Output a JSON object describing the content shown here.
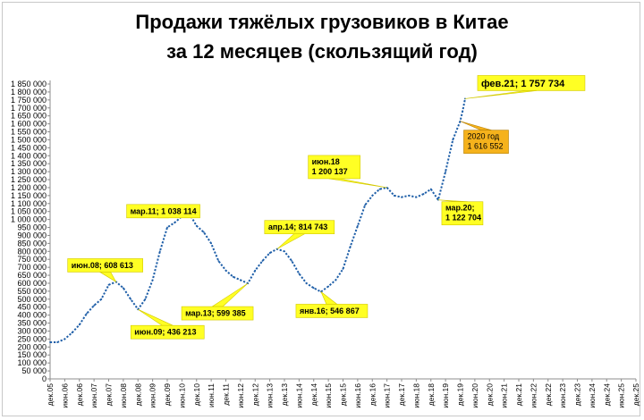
{
  "chart_data": {
    "type": "line",
    "title_lines": [
      "Продажи тяжёлых грузовиков в Китае",
      "за 12 месяцев (скользящий год)"
    ],
    "ylim": [
      0,
      1850000
    ],
    "y_tick_step": 50000,
    "y_tick_labels": [
      "0",
      "50 000",
      "100 000",
      "150 000",
      "200 000",
      "250 000",
      "300 000",
      "350 000",
      "400 000",
      "450 000",
      "500 000",
      "550 000",
      "600 000",
      "650 000",
      "700 000",
      "750 000",
      "800 000",
      "850 000",
      "900 000",
      "950 000",
      "1 000 000",
      "1 050 000",
      "1 100 000",
      "1 150 000",
      "1 200 000",
      "1 250 000",
      "1 300 000",
      "1 350 000",
      "1 400 000",
      "1 450 000",
      "1 500 000",
      "1 550 000",
      "1 600 000",
      "1 650 000",
      "1 700 000",
      "1 750 000",
      "1 800 000",
      "1 850 000"
    ],
    "x_tick_labels": [
      "дек.05",
      "июн.06",
      "дек.06",
      "июн.07",
      "дек.07",
      "июн.08",
      "дек.08",
      "июн.09",
      "дек.09",
      "июн.10",
      "дек.10",
      "июн.11",
      "дек.11",
      "июн.12",
      "дек.12",
      "июн.13",
      "дек.13",
      "июн.14",
      "дек.14",
      "июн.15",
      "дек.15",
      "июн.16",
      "дек.16",
      "июн.17",
      "дек.17",
      "июн.18",
      "дек.18",
      "июн.19",
      "дек.19",
      "июн.20",
      "дек.20",
      "июн.21",
      "дек.21",
      "июн.22",
      "дек.22",
      "июн.23",
      "дек.23",
      "июн.24",
      "дек.24",
      "июн.25",
      "дек.25"
    ],
    "x_range_months": [
      0,
      240
    ],
    "grid": false,
    "legend": "none",
    "series_color": "#1f5fa8",
    "points": [
      [
        0,
        230000
      ],
      [
        3,
        230000
      ],
      [
        6,
        250000
      ],
      [
        9,
        290000
      ],
      [
        12,
        340000
      ],
      [
        15,
        410000
      ],
      [
        18,
        460000
      ],
      [
        21,
        500000
      ],
      [
        24,
        590000
      ],
      [
        27,
        608613
      ],
      [
        30,
        570000
      ],
      [
        33,
        500000
      ],
      [
        36,
        436213
      ],
      [
        39,
        500000
      ],
      [
        42,
        620000
      ],
      [
        45,
        800000
      ],
      [
        48,
        950000
      ],
      [
        51,
        980000
      ],
      [
        54,
        1020000
      ],
      [
        57,
        1038114
      ],
      [
        60,
        960000
      ],
      [
        63,
        920000
      ],
      [
        66,
        850000
      ],
      [
        69,
        740000
      ],
      [
        72,
        680000
      ],
      [
        75,
        640000
      ],
      [
        78,
        620000
      ],
      [
        81,
        599385
      ],
      [
        84,
        680000
      ],
      [
        87,
        740000
      ],
      [
        90,
        790000
      ],
      [
        93,
        814743
      ],
      [
        96,
        800000
      ],
      [
        99,
        740000
      ],
      [
        102,
        660000
      ],
      [
        105,
        600000
      ],
      [
        108,
        570000
      ],
      [
        111,
        546867
      ],
      [
        114,
        580000
      ],
      [
        117,
        620000
      ],
      [
        120,
        690000
      ],
      [
        123,
        830000
      ],
      [
        126,
        960000
      ],
      [
        129,
        1090000
      ],
      [
        132,
        1150000
      ],
      [
        135,
        1190000
      ],
      [
        138,
        1200137
      ],
      [
        141,
        1150000
      ],
      [
        144,
        1140000
      ],
      [
        147,
        1150000
      ],
      [
        150,
        1140000
      ],
      [
        153,
        1160000
      ],
      [
        156,
        1190000
      ],
      [
        159,
        1122704
      ],
      [
        162,
        1300000
      ],
      [
        165,
        1500000
      ],
      [
        168,
        1616552
      ],
      [
        169,
        1680000
      ],
      [
        170,
        1757734
      ]
    ],
    "annotations": [
      {
        "kind": "callout-yellow",
        "text": "июн.08; 608 613",
        "at": [
          27,
          608613
        ]
      },
      {
        "kind": "callout-yellow",
        "text": "июн.09; 436 213",
        "at": [
          36,
          436213
        ]
      },
      {
        "kind": "callout-yellow",
        "text": "мар.11; 1 038 114",
        "at": [
          57,
          1038114
        ]
      },
      {
        "kind": "callout-yellow",
        "text": "мар.13; 599 385",
        "at": [
          81,
          599385
        ]
      },
      {
        "kind": "callout-yellow",
        "text": "апр.14; 814 743",
        "at": [
          93,
          814743
        ]
      },
      {
        "kind": "callout-yellow",
        "text": "янв.16; 546 867",
        "at": [
          111,
          546867
        ]
      },
      {
        "kind": "callout-yellow",
        "lines": [
          "июн.18",
          "1 200 137"
        ],
        "at": [
          138,
          1200137
        ]
      },
      {
        "kind": "callout-yellow",
        "lines": [
          "мар.20;",
          "1 122 704"
        ],
        "at": [
          159,
          1122704
        ]
      },
      {
        "kind": "callout-yellow-big",
        "text": "фев.21; 1 757 734",
        "at": [
          170,
          1757734
        ]
      },
      {
        "kind": "callout-orange",
        "lines": [
          "2020 год",
          "1 616 552"
        ],
        "at": [
          168,
          1616552
        ]
      }
    ]
  }
}
